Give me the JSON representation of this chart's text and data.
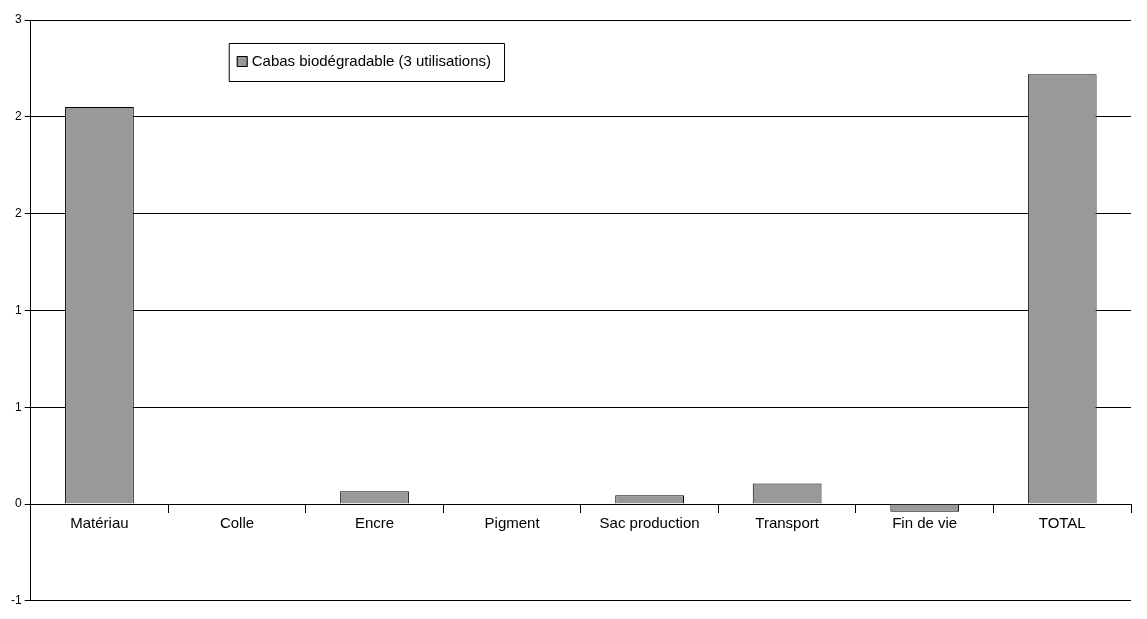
{
  "chart_data": {
    "type": "bar",
    "categories": [
      "Matériau",
      "Colle",
      "Encre",
      "Pigment",
      "Sac production",
      "Transport",
      "Fin de vie",
      "TOTAL"
    ],
    "series": [
      {
        "name": "Cabas biodégradable (3 utilisations)",
        "color": "#999999",
        "values": [
          2.05,
          0,
          0.066,
          0,
          0.045,
          0.106,
          -0.04,
          2.22
        ]
      }
    ],
    "ylim": [
      -0.5,
      2.5
    ],
    "yticks": [
      {
        "value": -0.5,
        "label": "-1"
      },
      0,
      {
        "value": 0.5,
        "label": "1"
      },
      1,
      {
        "value": 1.5,
        "label": "2"
      },
      2,
      {
        "value": 2.5,
        "label": "3"
      }
    ],
    "grid": "y",
    "legend": "top left"
  }
}
